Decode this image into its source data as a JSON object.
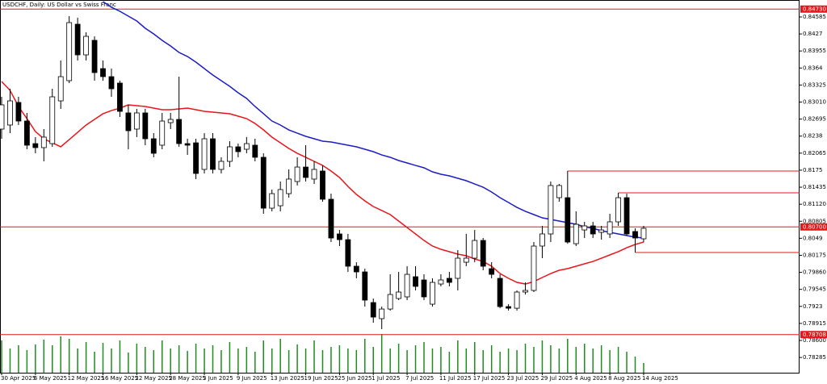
{
  "chart_data": {
    "type": "candlestick",
    "title": "USDCHF, Daily:  US Dollar vs Swiss Franc",
    "categories": [
      "30 Apr 2025",
      null,
      null,
      null,
      "6 May 2025",
      null,
      null,
      null,
      "12 May 2025",
      null,
      null,
      null,
      "16 May 2025",
      null,
      null,
      null,
      "22 May 2025",
      null,
      null,
      null,
      "28 May 2025",
      null,
      null,
      null,
      "3 Jun 2025",
      null,
      null,
      null,
      "9 Jun 2025",
      null,
      null,
      null,
      "13 Jun 2025",
      null,
      null,
      null,
      "19 Jun 2025",
      null,
      null,
      null,
      "25 Jun 2025",
      null,
      null,
      null,
      "1 Jul 2025",
      null,
      null,
      null,
      "7 Jul 2025",
      null,
      null,
      null,
      "11 Jul 2025",
      null,
      null,
      null,
      "17 Jul 2025",
      null,
      null,
      null,
      "23 Jul 2025",
      null,
      null,
      null,
      "29 Jul 2025",
      null,
      null,
      null,
      "4 Aug 2025",
      null,
      null,
      null,
      "8 Aug 2025",
      null,
      null,
      null,
      "14 Aug 2025"
    ],
    "open": [
      0.8251,
      0.82585,
      0.83003,
      0.82659,
      0.82241,
      0.82167,
      0.82241,
      0.83032,
      0.83406,
      0.8445,
      0.83883,
      0.84152,
      0.83629,
      0.8348,
      0.83361,
      0.82809,
      0.8251,
      0.82809,
      0.82331,
      0.82212,
      0.82629,
      0.82689,
      0.82241,
      0.82256,
      0.81764,
      0.82331,
      0.81764,
      0.81913,
      0.82182,
      0.82137,
      0.82212,
      0.81988,
      0.81047,
      0.81092,
      0.81316,
      0.8154,
      0.81808,
      0.81585,
      0.81734,
      0.81212,
      0.8057,
      0.80465,
      0.79973,
      0.79868,
      0.79301,
      0.79003,
      0.79181,
      0.79376,
      0.79406,
      0.79779,
      0.79719,
      0.79271,
      0.79644,
      0.79749,
      0.79749,
      0.80047,
      0.80122,
      0.8045,
      0.79928,
      0.79749,
      0.79226,
      0.79196,
      0.79495,
      0.79525,
      0.80346,
      0.8057,
      0.81241,
      0.81241,
      0.8039,
      0.80644,
      0.80719,
      0.806,
      0.8057,
      0.80794,
      0.81241,
      0.80615,
      0.8048
    ],
    "high": [
      0.83107,
      0.83256,
      0.83107,
      0.82809,
      0.82361,
      0.8251,
      0.83256,
      0.83779,
      0.84599,
      0.8457,
      0.84301,
      0.84226,
      0.83779,
      0.83629,
      0.83406,
      0.82958,
      0.82883,
      0.82883,
      0.82435,
      0.82809,
      0.82809,
      0.8348,
      0.82331,
      0.82331,
      0.82435,
      0.82435,
      0.81988,
      0.82286,
      0.82241,
      0.82361,
      0.82331,
      0.82062,
      0.81391,
      0.8154,
      0.81764,
      0.81988,
      0.82212,
      0.81913,
      0.81838,
      0.81316,
      0.80644,
      0.8057,
      0.80047,
      0.79928,
      0.79376,
      0.79226,
      0.79823,
      0.79868,
      0.79973,
      0.79973,
      0.79823,
      0.79749,
      0.79823,
      0.79868,
      0.80271,
      0.8057,
      0.80644,
      0.80495,
      0.80047,
      0.79823,
      0.79271,
      0.79525,
      0.79674,
      0.8042,
      0.80719,
      0.8154,
      0.81495,
      0.81734,
      0.80988,
      0.80794,
      0.80794,
      0.80719,
      0.80943,
      0.81331,
      0.81316,
      0.80674,
      0.80719
    ],
    "low": [
      0.82331,
      0.82435,
      0.82585,
      0.82137,
      0.82062,
      0.81913,
      0.82182,
      0.82883,
      0.83361,
      0.83779,
      0.83779,
      0.83406,
      0.83406,
      0.83107,
      0.82734,
      0.82137,
      0.82361,
      0.82212,
      0.81988,
      0.82137,
      0.8251,
      0.82182,
      0.82032,
      0.81585,
      0.81689,
      0.81689,
      0.81689,
      0.81808,
      0.81988,
      0.82062,
      0.81913,
      0.80943,
      0.80988,
      0.80988,
      0.81241,
      0.81466,
      0.8154,
      0.81495,
      0.81167,
      0.8042,
      0.80346,
      0.79868,
      0.79749,
      0.79226,
      0.78928,
      0.78809,
      0.79152,
      0.79346,
      0.79346,
      0.79525,
      0.79346,
      0.79226,
      0.796,
      0.796,
      0.79525,
      0.79973,
      0.80047,
      0.79898,
      0.79749,
      0.79196,
      0.79152,
      0.79152,
      0.7945,
      0.79495,
      0.80122,
      0.8042,
      0.81167,
      0.8039,
      0.80346,
      0.80495,
      0.80495,
      0.80465,
      0.80495,
      0.80719,
      0.8054,
      0.80227,
      0.8042
    ],
    "close": [
      0.82958,
      0.83032,
      0.82659,
      0.82212,
      0.82167,
      0.82361,
      0.83107,
      0.8348,
      0.8448,
      0.83883,
      0.84226,
      0.83555,
      0.8348,
      0.83256,
      0.82838,
      0.8248,
      0.82809,
      0.82331,
      0.82062,
      0.82659,
      0.82689,
      0.82241,
      0.82212,
      0.81689,
      0.82331,
      0.81764,
      0.81913,
      0.82182,
      0.82092,
      0.82241,
      0.81988,
      0.81047,
      0.81316,
      0.81391,
      0.81585,
      0.81808,
      0.81615,
      0.81764,
      0.81212,
      0.80495,
      0.80465,
      0.79973,
      0.79868,
      0.79346,
      0.79032,
      0.79181,
      0.7945,
      0.79495,
      0.79823,
      0.796,
      0.79406,
      0.79674,
      0.79719,
      0.79674,
      0.80122,
      0.80122,
      0.8045,
      0.79973,
      0.79823,
      0.79226,
      0.79196,
      0.79495,
      0.79525,
      0.80346,
      0.8057,
      0.81466,
      0.81466,
      0.8042,
      0.80749,
      0.80719,
      0.8057,
      0.80644,
      0.80794,
      0.81241,
      0.8057,
      0.80495,
      0.80674
    ],
    "up_color": "#ffffff",
    "down_color": "#000000",
    "moving_averages": [
      {
        "color": "#e8161b",
        "values": [
          0.83391,
          0.83226,
          0.82928,
          0.82704,
          0.82465,
          0.82331,
          0.82256,
          0.82182,
          0.82316,
          0.8245,
          0.82585,
          0.82689,
          0.82794,
          0.82853,
          0.82898,
          0.82958,
          0.82943,
          0.82928,
          0.82898,
          0.82868,
          0.82868,
          0.82883,
          0.82898,
          0.82868,
          0.82838,
          0.82823,
          0.82809,
          0.82794,
          0.82749,
          0.82704,
          0.82614,
          0.82495,
          0.82361,
          0.82256,
          0.82152,
          0.82062,
          0.81988,
          0.81913,
          0.81838,
          0.81734,
          0.81615,
          0.8145,
          0.81301,
          0.81182,
          0.81077,
          0.81003,
          0.80928,
          0.80809,
          0.80689,
          0.8057,
          0.8045,
          0.80346,
          0.80286,
          0.80242,
          0.80197,
          0.80167,
          0.80107,
          0.80062,
          0.79973,
          0.79838,
          0.79749,
          0.79674,
          0.79644,
          0.79689,
          0.79764,
          0.79838,
          0.79898,
          0.79928,
          0.79973,
          0.80018,
          0.80062,
          0.80122,
          0.80182,
          0.80242,
          0.80316,
          0.80376,
          0.8042
        ]
      },
      {
        "color": "#1c1cc8",
        "values": [
          null,
          null,
          null,
          null,
          null,
          null,
          null,
          null,
          null,
          null,
          null,
          null,
          0.84868,
          0.84764,
          0.84689,
          0.84599,
          0.8451,
          0.84376,
          0.84271,
          0.84152,
          0.84047,
          0.83928,
          0.83853,
          0.83749,
          0.83629,
          0.8351,
          0.83406,
          0.83301,
          0.83182,
          0.83077,
          0.82928,
          0.82794,
          0.82659,
          0.82585,
          0.82495,
          0.82435,
          0.82376,
          0.82331,
          0.82286,
          0.82271,
          0.82241,
          0.82212,
          0.82182,
          0.82137,
          0.82092,
          0.82032,
          0.81988,
          0.81928,
          0.81883,
          0.81838,
          0.81794,
          0.81719,
          0.81674,
          0.81644,
          0.816,
          0.81555,
          0.81495,
          0.81435,
          0.81346,
          0.81241,
          0.81152,
          0.81062,
          0.80988,
          0.80928,
          0.80868,
          0.80838,
          0.80809,
          0.80779,
          0.80749,
          0.80704,
          0.80674,
          0.8063,
          0.806,
          0.8057,
          0.8054,
          0.8051,
          0.80495
        ]
      }
    ],
    "volume": {
      "color": "#1f8c1f",
      "values": [
        40,
        30,
        34,
        28,
        35,
        41,
        34,
        45,
        42,
        30,
        38,
        26,
        37,
        30,
        40,
        25,
        36,
        32,
        28,
        40,
        30,
        34,
        27,
        36,
        30,
        34,
        28,
        38,
        30,
        32,
        26,
        40,
        30,
        42,
        28,
        35,
        30,
        40,
        28,
        32,
        34,
        30,
        28,
        42,
        32,
        48,
        30,
        36,
        28,
        34,
        38,
        30,
        32,
        26,
        40,
        30,
        38,
        28,
        34,
        26,
        30,
        28,
        36,
        32,
        40,
        34,
        30,
        42,
        32,
        36,
        30,
        34,
        28,
        32,
        26,
        20,
        12
      ]
    },
    "levels": [
      {
        "value": 0.8473,
        "label": "0.84730"
      },
      {
        "value": 0.807,
        "label": "0.80700"
      },
      {
        "value": 0.78708,
        "label": "0.78708"
      }
    ],
    "level_color": "#e8161b",
    "segments": [
      {
        "value": 0.81734,
        "from_index": 67
      },
      {
        "value": 0.81331,
        "from_index": 73
      },
      {
        "value": 0.80227,
        "from_index": 75
      }
    ],
    "ylim": [
      0.78003,
      0.84898
    ],
    "yticks": [
      0.84585,
      0.8427,
      0.83955,
      0.8364,
      0.83325,
      {
        "value": 0.8301,
        "label": "0.83010"
      },
      0.82695,
      0.8238,
      0.82065,
      0.8175,
      0.81435,
      {
        "value": 0.8112,
        "label": "0.81120"
      },
      0.80805,
      0.8049,
      0.80175,
      {
        "value": 0.7986,
        "label": "0.79860"
      },
      0.79545,
      0.7923,
      0.78915,
      {
        "value": 0.786,
        "label": "0.78600"
      },
      0.78285
    ]
  }
}
